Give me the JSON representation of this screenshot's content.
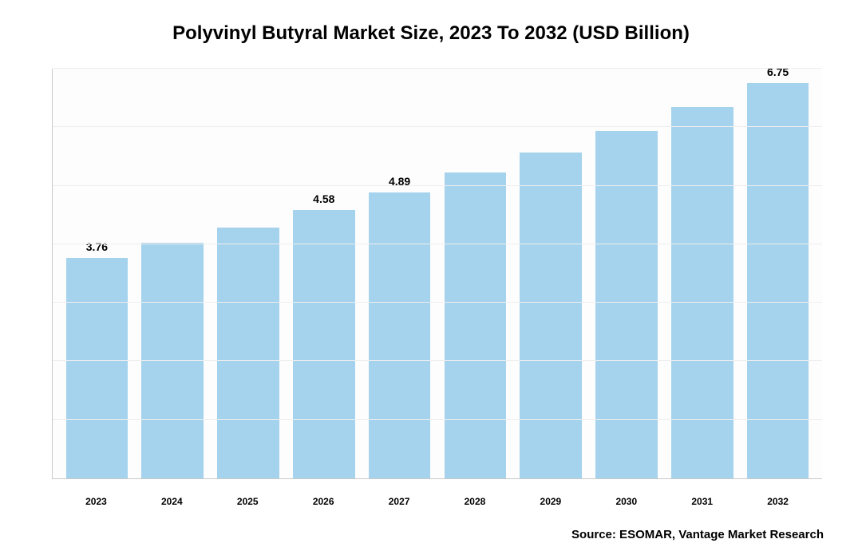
{
  "chart": {
    "type": "bar",
    "title": "Polyvinyl Butyral Market Size, 2023 To 2032 (USD Billion)",
    "title_fontsize": 24,
    "title_color": "#000000",
    "categories": [
      "2023",
      "2024",
      "2025",
      "2026",
      "2027",
      "2028",
      "2029",
      "2030",
      "2031",
      "2032"
    ],
    "values": [
      3.76,
      4.02,
      4.29,
      4.58,
      4.89,
      5.22,
      5.57,
      5.94,
      6.34,
      6.75
    ],
    "show_label": [
      true,
      false,
      false,
      true,
      true,
      false,
      false,
      false,
      false,
      true
    ],
    "bar_color": "#a5d2ed",
    "background_color": "#ffffff",
    "plot_background": "#fdfdfd",
    "border_color": "#c9c9c9",
    "grid_color": "#eeeeee",
    "axis_label_fontsize": 13,
    "bar_label_fontsize": 14,
    "x_label_fontsize": 12,
    "ylim_max": 7.0,
    "grid_steps": 7,
    "bar_width_pct": 82
  },
  "source": {
    "text": "Source: ESOMAR, Vantage Market Research",
    "fontsize": 15
  }
}
